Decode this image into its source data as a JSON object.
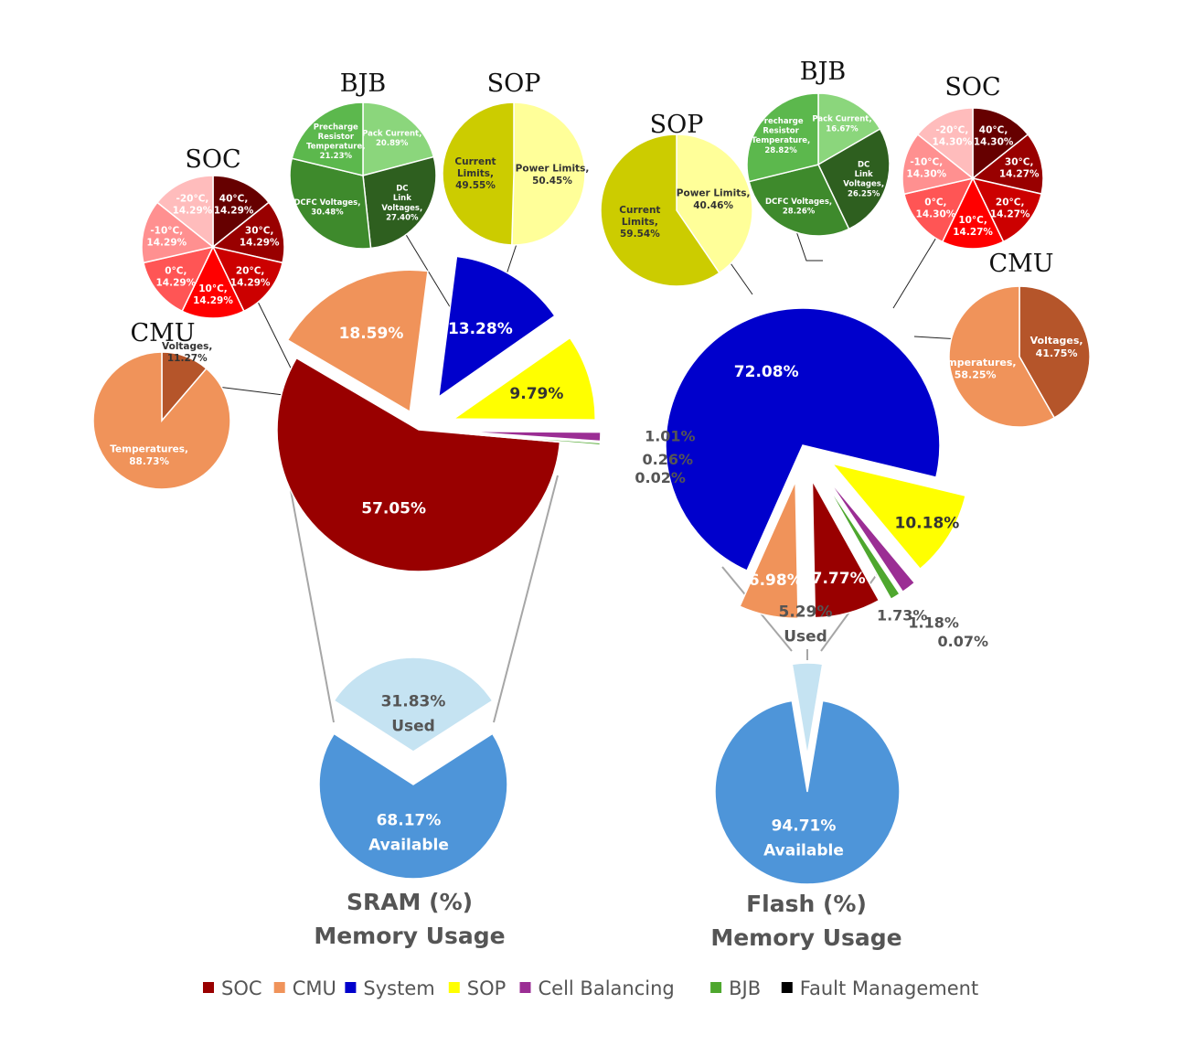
{
  "colors": {
    "SOC": "#990000",
    "CMU": "#F0935A",
    "System": "#0000CC",
    "SOP": "#FFFF00",
    "Cell Balancing": "#9B2E94",
    "BJB": "#4EA72E",
    "Fault Management": "#000000",
    "used": "#C5E3F2",
    "available": "#4E95D9"
  },
  "legend": [
    "SOC",
    "CMU",
    "System",
    "SOP",
    "Cell Balancing",
    "BJB",
    "Fault Management"
  ],
  "chart_data": [
    {
      "id": "sram",
      "type": "pie",
      "title": "SRAM (%)",
      "subtitle": "Memory Usage",
      "usage": [
        {
          "label": "Used",
          "value": 31.83,
          "text": "31.83%"
        },
        {
          "label": "Available",
          "value": 68.17,
          "text": "68.17%"
        }
      ],
      "breakdown": [
        {
          "category": "SOC",
          "value": 57.05,
          "text": "57.05%"
        },
        {
          "category": "CMU",
          "value": 18.59,
          "text": "18.59%"
        },
        {
          "category": "System",
          "value": 13.28,
          "text": "13.28%"
        },
        {
          "category": "SOP",
          "value": 9.79,
          "text": "9.79%"
        },
        {
          "category": "Cell Balancing",
          "value": 1.01,
          "text": "1.01%"
        },
        {
          "category": "BJB",
          "value": 0.26,
          "text": "0.26%"
        },
        {
          "category": "Fault Management",
          "value": 0.02,
          "text": "0.02%"
        }
      ],
      "sub_pies": [
        {
          "title": "SOC",
          "slices": [
            {
              "label": "40°C,",
              "text": "14.29%",
              "value": 14.29
            },
            {
              "label": "30°C,",
              "text": "14.29%",
              "value": 14.29
            },
            {
              "label": "20°C,",
              "text": "14.29%",
              "value": 14.29
            },
            {
              "label": "10°C,",
              "text": "14.29%",
              "value": 14.29
            },
            {
              "label": "0°C,",
              "text": "14.29%",
              "value": 14.29
            },
            {
              "label": "-10°C,",
              "text": "14.29%",
              "value": 14.29
            },
            {
              "label": "-20°C,",
              "text": "14.29%",
              "value": 14.29
            }
          ]
        },
        {
          "title": "BJB",
          "slices": [
            {
              "label": "Pack Current,",
              "text": "20.89%",
              "value": 20.89
            },
            {
              "label": "DC Link Voltages,",
              "text": "27.40%",
              "value": 27.4
            },
            {
              "label": "DCFC Voltages,",
              "text": "30.48%",
              "value": 30.48
            },
            {
              "label": "Precharge Resistor Temperature,",
              "text": "21.23%",
              "value": 21.23
            }
          ]
        },
        {
          "title": "SOP",
          "slices": [
            {
              "label": "Power Limits,",
              "text": "50.45%",
              "value": 50.45
            },
            {
              "label": "Current Limits,",
              "text": "49.55%",
              "value": 49.55
            }
          ]
        },
        {
          "title": "CMU",
          "slices": [
            {
              "label": "Voltages,",
              "text": "11.27%",
              "value": 11.27
            },
            {
              "label": "Temperatures,",
              "text": "88.73%",
              "value": 88.73
            }
          ]
        }
      ]
    },
    {
      "id": "flash",
      "type": "pie",
      "title": "Flash (%)",
      "subtitle": "Memory Usage",
      "usage": [
        {
          "label": "Used",
          "value": 5.29,
          "text": "5.29%"
        },
        {
          "label": "Available",
          "value": 94.71,
          "text": "94.71%"
        }
      ],
      "breakdown": [
        {
          "category": "System",
          "value": 72.08,
          "text": "72.08%"
        },
        {
          "category": "SOP",
          "value": 10.18,
          "text": "10.18%"
        },
        {
          "category": "Cell Balancing",
          "value": 1.73,
          "text": "1.73%"
        },
        {
          "category": "BJB",
          "value": 1.18,
          "text": "1.18%"
        },
        {
          "category": "Fault Management",
          "value": 0.07,
          "text": "0.07%"
        },
        {
          "category": "SOC",
          "value": 7.77,
          "text": "7.77%"
        },
        {
          "category": "CMU",
          "value": 6.98,
          "text": "6.98%"
        }
      ],
      "sub_pies": [
        {
          "title": "SOP",
          "slices": [
            {
              "label": "Power Limits,",
              "text": "40.46%",
              "value": 40.46
            },
            {
              "label": "Current Limits,",
              "text": "59.54%",
              "value": 59.54
            }
          ]
        },
        {
          "title": "BJB",
          "slices": [
            {
              "label": "Pack Current,",
              "text": "16.67%",
              "value": 16.67
            },
            {
              "label": "DC Link Voltages,",
              "text": "26.25%",
              "value": 26.25
            },
            {
              "label": "DCFC Voltages,",
              "text": "28.26%",
              "value": 28.26
            },
            {
              "label": "Precharge Resistor Temperature,",
              "text": "28.82%",
              "value": 28.82
            }
          ]
        },
        {
          "title": "SOC",
          "slices": [
            {
              "label": "40°C,",
              "text": "14.30%",
              "value": 14.3
            },
            {
              "label": "30°C,",
              "text": "14.27%",
              "value": 14.27
            },
            {
              "label": "20°C,",
              "text": "14.27%",
              "value": 14.27
            },
            {
              "label": "10°C,",
              "text": "14.27%",
              "value": 14.27
            },
            {
              "label": "0°C,",
              "text": "14.30%",
              "value": 14.3
            },
            {
              "label": "-10°C,",
              "text": "14.30%",
              "value": 14.3
            },
            {
              "label": "-20°C,",
              "text": "14.30%",
              "value": 14.3
            }
          ]
        },
        {
          "title": "CMU",
          "slices": [
            {
              "label": "Voltages,",
              "text": "41.75%",
              "value": 41.75
            },
            {
              "label": "Temperatures,",
              "text": "58.25%",
              "value": 58.25
            }
          ]
        }
      ]
    }
  ]
}
